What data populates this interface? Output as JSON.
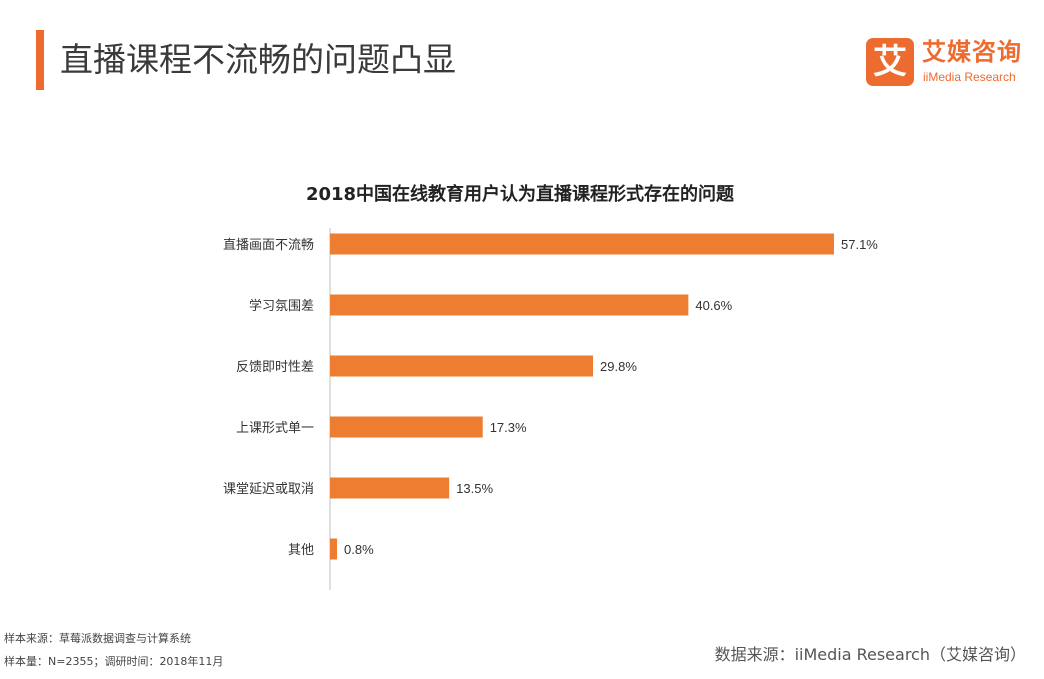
{
  "header": {
    "title": "直播课程不流畅的问题凸显"
  },
  "logo": {
    "mark": "艾",
    "name_cn": "艾媒咨询",
    "name_en": "iiMedia Research"
  },
  "chart_data": {
    "type": "bar",
    "orientation": "horizontal",
    "title": "2018中国在线教育用户认为直播课程形式存在的问题",
    "categories": [
      "直播画面不流畅",
      "学习氛围差",
      "反馈即时性差",
      "上课形式单一",
      "课堂延迟或取消",
      "其他"
    ],
    "values": [
      57.1,
      40.6,
      29.8,
      17.3,
      13.5,
      0.8
    ],
    "value_labels": [
      "57.1%",
      "40.6%",
      "29.8%",
      "17.3%",
      "13.5%",
      "0.8%"
    ],
    "unit": "%",
    "xlim": [
      0,
      57.1
    ],
    "grid": false,
    "legend": "none",
    "bar_color": "#ed7d31"
  },
  "footer": {
    "sample_source": "样本来源：草莓派数据调查与计算系统",
    "sample_size": "样本量：N=2355；调研时间：2018年11月",
    "data_source": "数据来源：iiMedia Research（艾媒咨询）"
  },
  "colors": {
    "accent": "#ee6b2f",
    "bar": "#ed7d31",
    "axis": "#bfbfbf"
  }
}
